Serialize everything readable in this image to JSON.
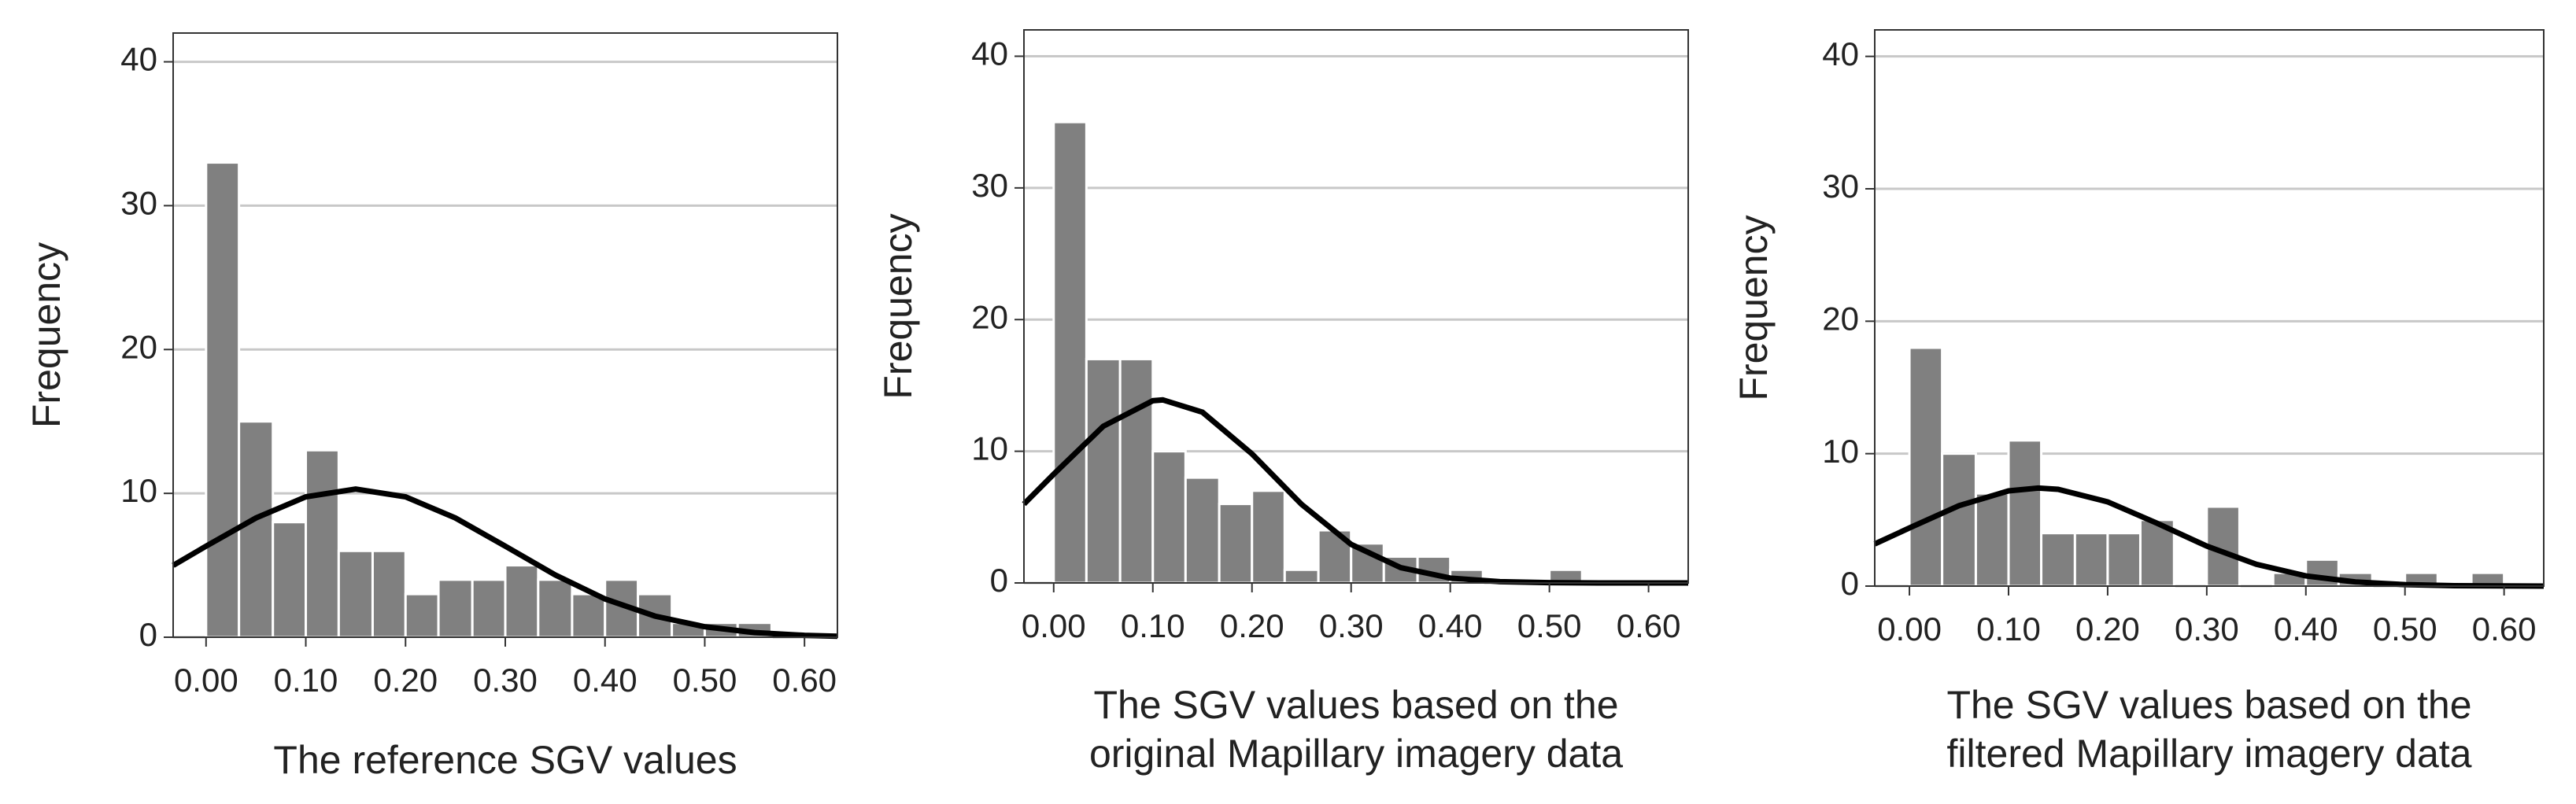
{
  "chart_data": [
    {
      "type": "histogram",
      "x_label": [
        "The reference SGV values"
      ],
      "y_label": "Frequency",
      "bins": [
        0,
        0.033,
        0.067,
        0.1,
        0.133,
        0.167,
        0.2,
        0.233,
        0.267,
        0.3,
        0.333,
        0.367,
        0.4,
        0.433,
        0.467,
        0.5,
        0.533,
        0.567
      ],
      "values": [
        33,
        15,
        8,
        13,
        6,
        6,
        3,
        4,
        4,
        5,
        4,
        3,
        4,
        3,
        1,
        1,
        1
      ],
      "color": "#808080",
      "curve": {
        "color": "#000000",
        "x": [
          -0.033,
          0,
          0.05,
          0.1,
          0.15,
          0.2,
          0.25,
          0.3,
          0.35,
          0.4,
          0.45,
          0.5,
          0.55,
          0.6,
          0.633
        ],
        "y": [
          4.99,
          6.33,
          8.29,
          9.76,
          10.3,
          9.76,
          8.29,
          6.33,
          4.33,
          2.66,
          1.47,
          0.73,
          0.32,
          0.13,
          0.07
        ]
      },
      "xlim": [
        -0.033,
        0.633
      ],
      "ylim": [
        0,
        42
      ],
      "xticks": [
        {
          "value": 0,
          "label": "0.00"
        },
        {
          "value": 0.1,
          "label": "0.10"
        },
        {
          "value": 0.2,
          "label": "0.20"
        },
        {
          "value": 0.3,
          "label": "0.30"
        },
        {
          "value": 0.4,
          "label": "0.40"
        },
        {
          "value": 0.5,
          "label": "0.50"
        },
        {
          "value": 0.6,
          "label": "0.60"
        }
      ],
      "yticks": [
        0,
        10,
        20,
        30,
        40
      ],
      "grid": true
    },
    {
      "type": "histogram",
      "x_label": [
        "The SGV values based on the",
        "original Mapillary imagery data"
      ],
      "y_label": "Frequency",
      "bins": [
        0,
        0.033,
        0.067,
        0.1,
        0.133,
        0.167,
        0.2,
        0.233,
        0.267,
        0.3,
        0.333,
        0.367,
        0.4,
        0.433,
        0.467,
        0.5,
        0.533
      ],
      "values": [
        35,
        17,
        17,
        10,
        8,
        6,
        7,
        1,
        4,
        3,
        2,
        2,
        1,
        0,
        0,
        1
      ],
      "color": "#808080",
      "curve": {
        "color": "#000000",
        "x": [
          -0.03,
          0,
          0.05,
          0.1,
          0.11,
          0.15,
          0.2,
          0.25,
          0.3,
          0.35,
          0.4,
          0.45,
          0.5,
          0.55,
          0.64
        ],
        "y": [
          5.99,
          8.26,
          11.9,
          13.84,
          13.9,
          12.97,
          9.8,
          5.97,
          2.93,
          1.16,
          0.37,
          0.1,
          0.02,
          0,
          0
        ]
      },
      "xlim": [
        -0.03,
        0.64
      ],
      "ylim": [
        0,
        42
      ],
      "xticks": [
        {
          "value": 0,
          "label": "0.00"
        },
        {
          "value": 0.1,
          "label": "0.10"
        },
        {
          "value": 0.2,
          "label": "0.20"
        },
        {
          "value": 0.3,
          "label": "0.30"
        },
        {
          "value": 0.4,
          "label": "0.40"
        },
        {
          "value": 0.5,
          "label": "0.50"
        },
        {
          "value": 0.6,
          "label": "0.60"
        }
      ],
      "yticks": [
        0,
        10,
        20,
        30,
        40
      ],
      "grid": true
    },
    {
      "type": "histogram",
      "x_label": [
        "The SGV values based on the",
        "filtered Mapillary imagery data"
      ],
      "y_label": "Frequency",
      "bins": [
        0,
        0.033,
        0.067,
        0.1,
        0.133,
        0.167,
        0.2,
        0.233,
        0.267,
        0.3,
        0.333,
        0.367,
        0.4,
        0.433,
        0.467,
        0.5,
        0.533,
        0.567,
        0.6
      ],
      "values": [
        18,
        10,
        7,
        11,
        4,
        4,
        4,
        5,
        0,
        6,
        0,
        1,
        2,
        1,
        0,
        1,
        0,
        1
      ],
      "color": "#808080",
      "curve": {
        "color": "#000000",
        "x": [
          -0.035,
          0,
          0.05,
          0.1,
          0.13,
          0.15,
          0.2,
          0.25,
          0.3,
          0.35,
          0.4,
          0.45,
          0.5,
          0.55,
          0.64
        ],
        "y": [
          3.18,
          4.39,
          6.07,
          7.19,
          7.4,
          7.31,
          6.36,
          4.74,
          3.02,
          1.65,
          0.77,
          0.31,
          0.11,
          0.03,
          0
        ]
      },
      "xlim": [
        -0.035,
        0.64
      ],
      "ylim": [
        0,
        42
      ],
      "xticks": [
        {
          "value": 0,
          "label": "0.00"
        },
        {
          "value": 0.1,
          "label": "0.10"
        },
        {
          "value": 0.2,
          "label": "0.20"
        },
        {
          "value": 0.3,
          "label": "0.30"
        },
        {
          "value": 0.4,
          "label": "0.40"
        },
        {
          "value": 0.5,
          "label": "0.50"
        },
        {
          "value": 0.6,
          "label": "0.60"
        }
      ],
      "yticks": [
        0,
        10,
        20,
        30,
        40
      ],
      "grid": true
    }
  ]
}
